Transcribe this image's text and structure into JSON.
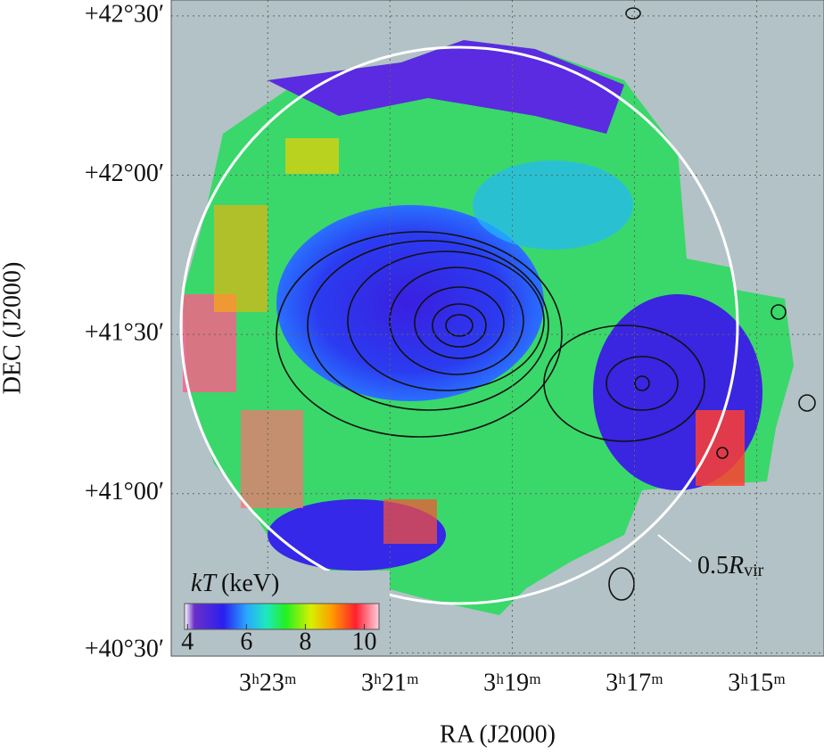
{
  "chart_data": {
    "type": "map",
    "xlabel": "RA (J2000)",
    "ylabel": "DEC (J2000)",
    "xlim": [
      204.58,
      193.9
    ],
    "xticks": [
      {
        "value": 203,
        "label": "3ʰ23ᵐ"
      },
      {
        "value": 201,
        "label": "3ʰ21ᵐ"
      },
      {
        "value": 199,
        "label": "3ʰ19ᵐ"
      },
      {
        "value": 197,
        "label": "3ʰ17ᵐ"
      },
      {
        "value": 195,
        "label": "3ʰ15ᵐ"
      }
    ],
    "ylim": [
      40.49,
      42.55
    ],
    "yticks": [
      {
        "value": 42.5,
        "label": "+42°30′"
      },
      {
        "value": 42.0,
        "label": "+42°00′"
      },
      {
        "value": 41.5,
        "label": "+41°30′"
      },
      {
        "value": 41.0,
        "label": "+41°00′"
      },
      {
        "value": 40.5,
        "label": "+40°30′"
      }
    ],
    "grid": true,
    "colorbar": {
      "label_symbol": "kT",
      "label_unit": "(keV)",
      "clim": [
        3.9,
        10.5
      ],
      "ticks": [
        4,
        6,
        8,
        10
      ]
    },
    "annotation": {
      "prefix": "0.5",
      "symbol": "R",
      "subscript": "vir"
    }
  }
}
